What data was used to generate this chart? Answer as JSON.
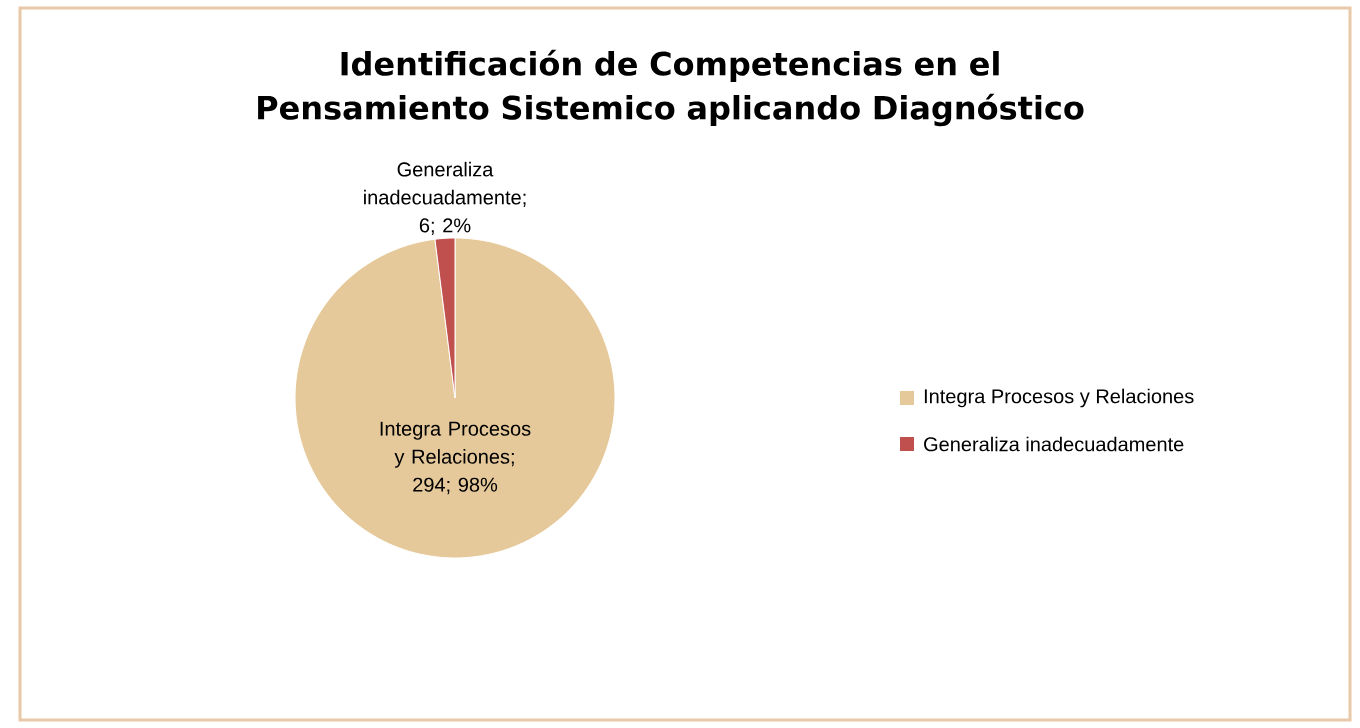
{
  "chart_data": {
    "type": "pie",
    "title": "Identificación de Competencias en el Pensamiento Sistemico aplicando Diagnóstico",
    "categories": [
      "Integra Procesos y Relaciones",
      "Generaliza inadecuadamente"
    ],
    "values": [
      294,
      6
    ],
    "colors": [
      "#e6c99a",
      "#c0504d"
    ],
    "value_labels": [
      "Integra Procesos y Relaciones; 294; 98%",
      "Generaliza inadecuadamente; 6; 2%"
    ],
    "legend": "right"
  }
}
